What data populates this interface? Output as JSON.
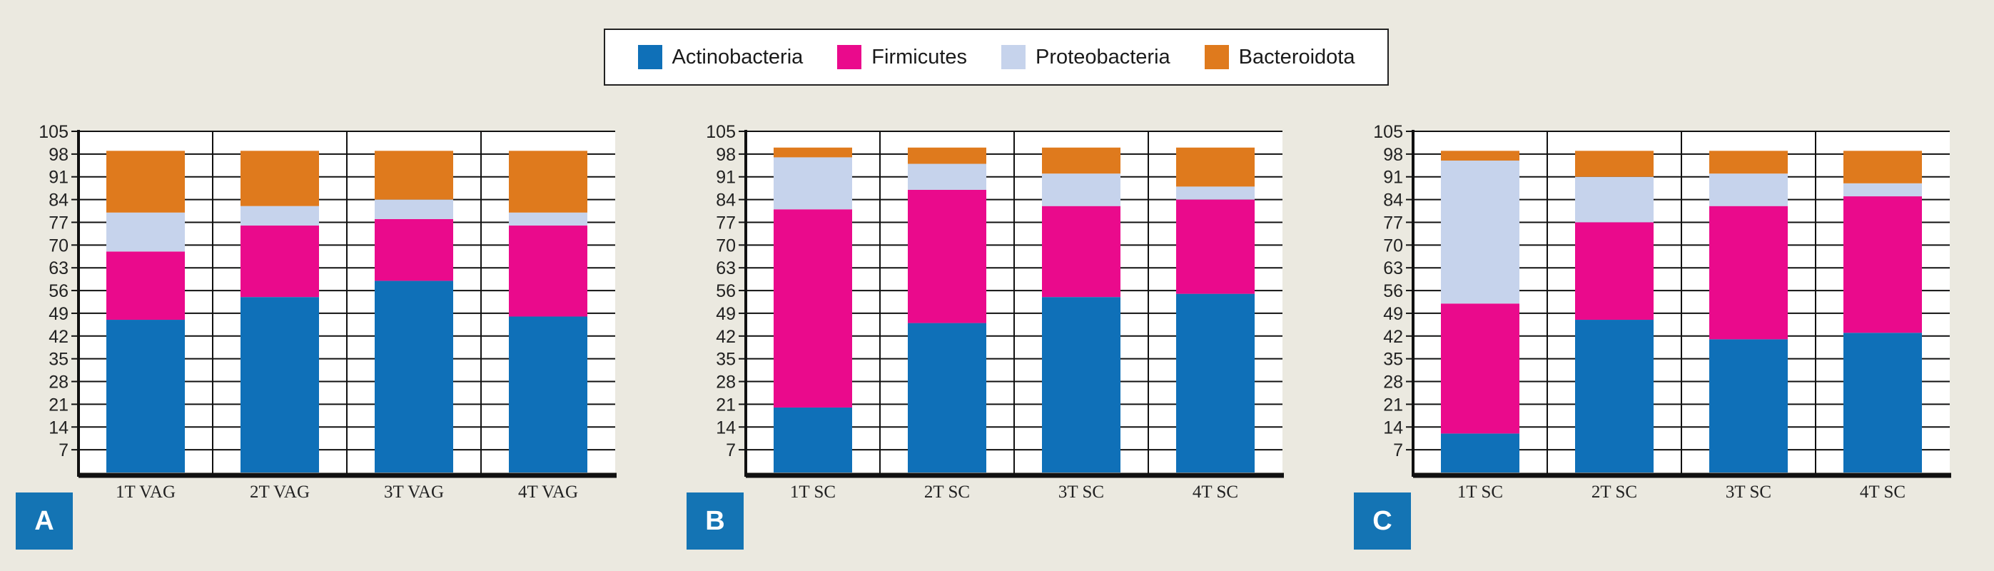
{
  "legend": [
    {
      "name": "Actinobacteria",
      "color": "#0f70b8"
    },
    {
      "name": "Firmicutes",
      "color": "#ea0a8c"
    },
    {
      "name": "Proteobacteria",
      "color": "#c6d3ec"
    },
    {
      "name": "Bacteroidota",
      "color": "#df7a1d"
    }
  ],
  "panels": [
    {
      "label": "A"
    },
    {
      "label": "B"
    },
    {
      "label": "C"
    }
  ],
  "chart_data": [
    {
      "type": "bar",
      "stacked": true,
      "panel": "A",
      "categories": [
        "1T VAG",
        "2T VAG",
        "3T VAG",
        "4T VAG"
      ],
      "ylim": [
        0,
        105
      ],
      "yticks": [
        7,
        14,
        21,
        28,
        35,
        42,
        49,
        56,
        63,
        70,
        77,
        84,
        91,
        98,
        105
      ],
      "grid": true,
      "legend_position": "top-center",
      "series": [
        {
          "name": "Actinobacteria",
          "values": [
            47,
            54,
            59,
            48
          ]
        },
        {
          "name": "Firmicutes",
          "values": [
            21,
            22,
            19,
            28
          ]
        },
        {
          "name": "Proteobacteria",
          "values": [
            12,
            6,
            6,
            4
          ]
        },
        {
          "name": "Bacteroidota",
          "values": [
            19,
            17,
            15,
            19
          ]
        }
      ]
    },
    {
      "type": "bar",
      "stacked": true,
      "panel": "B",
      "categories": [
        "1T SC",
        "2T SC",
        "3T SC",
        "4T SC"
      ],
      "ylim": [
        0,
        105
      ],
      "yticks": [
        7,
        14,
        21,
        28,
        35,
        42,
        49,
        56,
        63,
        70,
        77,
        84,
        91,
        98,
        105
      ],
      "grid": true,
      "series": [
        {
          "name": "Actinobacteria",
          "values": [
            20,
            46,
            54,
            55
          ]
        },
        {
          "name": "Firmicutes",
          "values": [
            61,
            41,
            28,
            29
          ]
        },
        {
          "name": "Proteobacteria",
          "values": [
            16,
            8,
            10,
            4
          ]
        },
        {
          "name": "Bacteroidota",
          "values": [
            3,
            5,
            8,
            12
          ]
        }
      ]
    },
    {
      "type": "bar",
      "stacked": true,
      "panel": "C",
      "categories": [
        "1T SC",
        "2T SC",
        "3T SC",
        "4T SC"
      ],
      "ylim": [
        0,
        105
      ],
      "yticks": [
        7,
        14,
        21,
        28,
        35,
        42,
        49,
        56,
        63,
        70,
        77,
        84,
        91,
        98,
        105
      ],
      "grid": true,
      "series": [
        {
          "name": "Actinobacteria",
          "values": [
            12,
            47,
            41,
            43
          ]
        },
        {
          "name": "Firmicutes",
          "values": [
            40,
            30,
            41,
            42
          ]
        },
        {
          "name": "Proteobacteria",
          "values": [
            44,
            14,
            10,
            4
          ]
        },
        {
          "name": "Bacteroidota",
          "values": [
            3,
            8,
            7,
            10
          ]
        }
      ]
    }
  ]
}
